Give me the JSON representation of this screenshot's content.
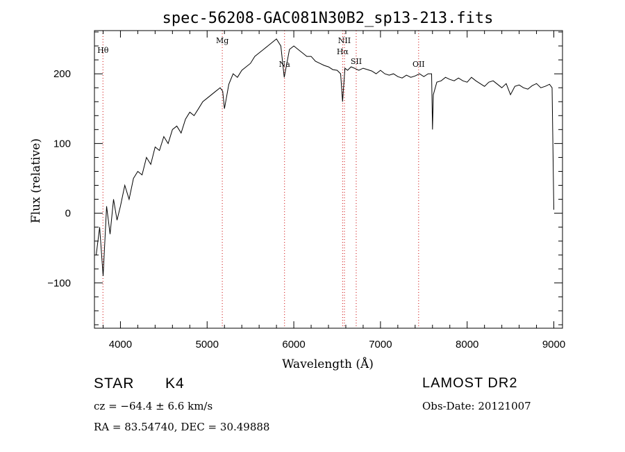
{
  "chart_data": {
    "type": "line",
    "title": "spec-56208-GAC081N30B2_sp13-213.fits",
    "xlabel": "Wavelength (Å)",
    "ylabel": "Flux (relative)",
    "xlim": [
      3700,
      9100
    ],
    "ylim": [
      -165,
      262
    ],
    "xticks": [
      4000,
      5000,
      6000,
      7000,
      8000,
      9000
    ],
    "yticks": [
      -100,
      0,
      100,
      200
    ],
    "grid": false,
    "line_color": "#000000",
    "marker_color": "#cc0000",
    "series": [
      {
        "name": "flux",
        "x": [
          3720,
          3760,
          3800,
          3840,
          3880,
          3920,
          3960,
          4000,
          4050,
          4100,
          4150,
          4200,
          4250,
          4300,
          4350,
          4400,
          4450,
          4500,
          4550,
          4600,
          4650,
          4700,
          4750,
          4800,
          4850,
          4900,
          4950,
          5000,
          5050,
          5100,
          5150,
          5180,
          5200,
          5250,
          5300,
          5350,
          5400,
          5450,
          5500,
          5550,
          5600,
          5650,
          5700,
          5750,
          5800,
          5850,
          5890,
          5950,
          6000,
          6050,
          6100,
          6150,
          6200,
          6250,
          6300,
          6350,
          6400,
          6450,
          6500,
          6540,
          6563,
          6590,
          6620,
          6660,
          6700,
          6750,
          6800,
          6850,
          6900,
          6950,
          7000,
          7050,
          7100,
          7150,
          7200,
          7250,
          7300,
          7350,
          7400,
          7450,
          7500,
          7550,
          7590,
          7600,
          7610,
          7650,
          7700,
          7750,
          7800,
          7850,
          7900,
          7950,
          8000,
          8050,
          8100,
          8150,
          8200,
          8250,
          8300,
          8350,
          8400,
          8450,
          8500,
          8550,
          8600,
          8650,
          8700,
          8750,
          8800,
          8850,
          8900,
          8950,
          8980,
          9000
        ],
        "y": [
          -60,
          -20,
          -90,
          10,
          -30,
          20,
          -10,
          10,
          40,
          20,
          50,
          60,
          55,
          80,
          70,
          95,
          90,
          110,
          100,
          120,
          125,
          115,
          135,
          145,
          140,
          150,
          160,
          165,
          170,
          175,
          180,
          175,
          150,
          185,
          200,
          195,
          205,
          210,
          215,
          225,
          230,
          235,
          240,
          245,
          250,
          240,
          195,
          235,
          240,
          235,
          230,
          225,
          225,
          218,
          215,
          212,
          210,
          206,
          205,
          200,
          160,
          208,
          205,
          210,
          208,
          205,
          208,
          206,
          204,
          200,
          205,
          200,
          198,
          200,
          196,
          194,
          198,
          195,
          197,
          200,
          196,
          200,
          200,
          120,
          170,
          188,
          190,
          195,
          192,
          190,
          194,
          190,
          188,
          195,
          190,
          186,
          182,
          188,
          190,
          185,
          180,
          186,
          170,
          182,
          184,
          180,
          178,
          183,
          186,
          180,
          182,
          185,
          180,
          5
        ]
      }
    ],
    "lines": [
      {
        "label": "Hθ",
        "x": 3798
      },
      {
        "label": "Mg",
        "x": 5175
      },
      {
        "label": "Na",
        "x": 5893
      },
      {
        "label": "Hα",
        "x": 6563
      },
      {
        "label": "NII",
        "x": 6584
      },
      {
        "label": "SII",
        "x": 6720
      },
      {
        "label": "OII",
        "x": 7440
      }
    ]
  },
  "info": {
    "classification": "STAR",
    "subclass": "K4",
    "survey": "LAMOST DR2",
    "cz": "cz = −64.4 ± 6.6 km/s",
    "obs_date": "Obs-Date: 20121007",
    "coords": "RA =  83.54740, DEC =  30.49888"
  }
}
